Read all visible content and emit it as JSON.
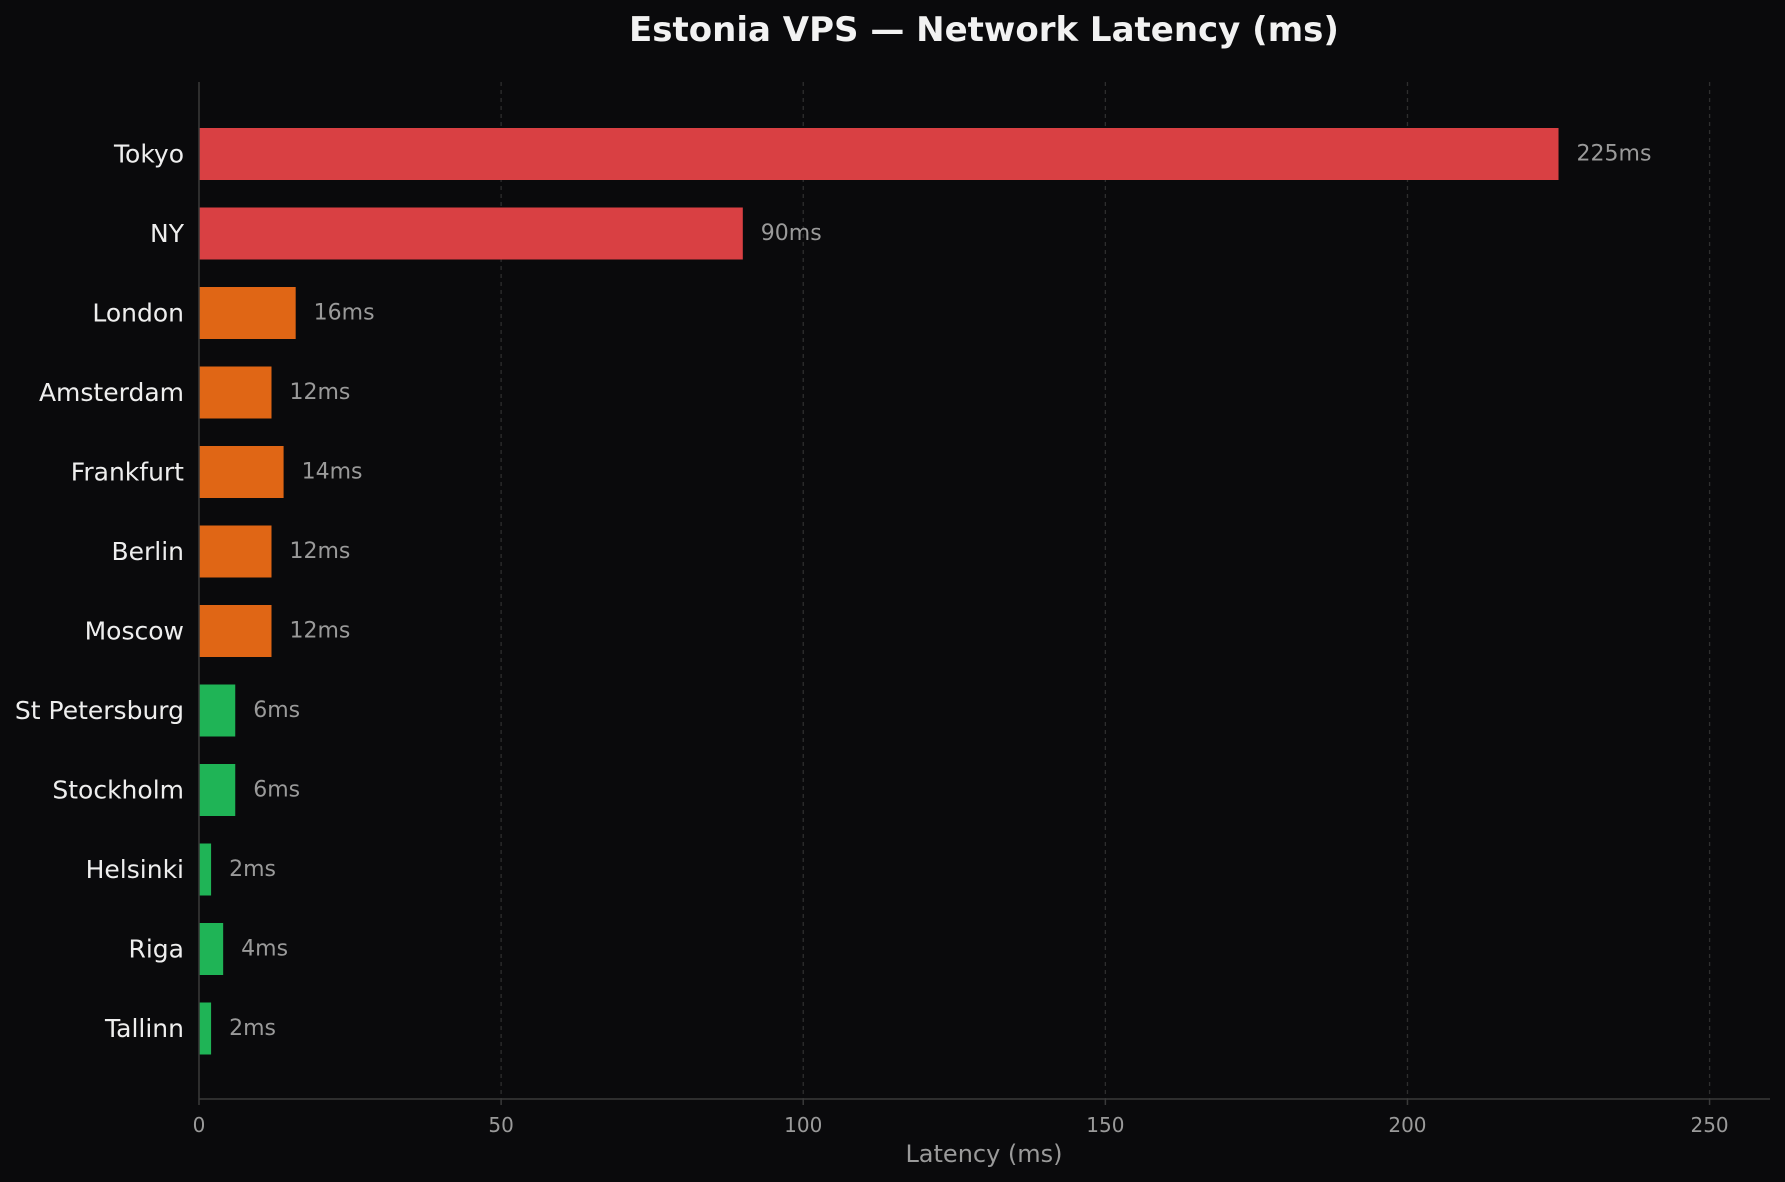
{
  "chart_data": {
    "type": "bar",
    "orientation": "horizontal",
    "title": "Estonia VPS — Network Latency (ms)",
    "xlabel": "Latency (ms)",
    "ylabel": "",
    "xlim": [
      0,
      260
    ],
    "xticks": [
      0,
      50,
      100,
      150,
      200,
      250
    ],
    "grid": "vertical dashed",
    "value_suffix": "ms",
    "categories": [
      "Tokyo",
      "NY",
      "London",
      "Amsterdam",
      "Frankfurt",
      "Berlin",
      "Moscow",
      "St Petersburg",
      "Stockholm",
      "Helsinki",
      "Riga",
      "Tallinn"
    ],
    "values": [
      225,
      90,
      16,
      12,
      14,
      12,
      12,
      6,
      6,
      2,
      4,
      2
    ],
    "bar_colors": [
      "#d94043",
      "#d94043",
      "#e06615",
      "#e06615",
      "#e06615",
      "#e06615",
      "#e06615",
      "#1fb456",
      "#1fb456",
      "#1fb456",
      "#1fb456",
      "#1fb456"
    ]
  },
  "colors": {
    "background": "#0a0a0c",
    "grid": "#2e2e2e",
    "axis": "#3a3a3a"
  }
}
